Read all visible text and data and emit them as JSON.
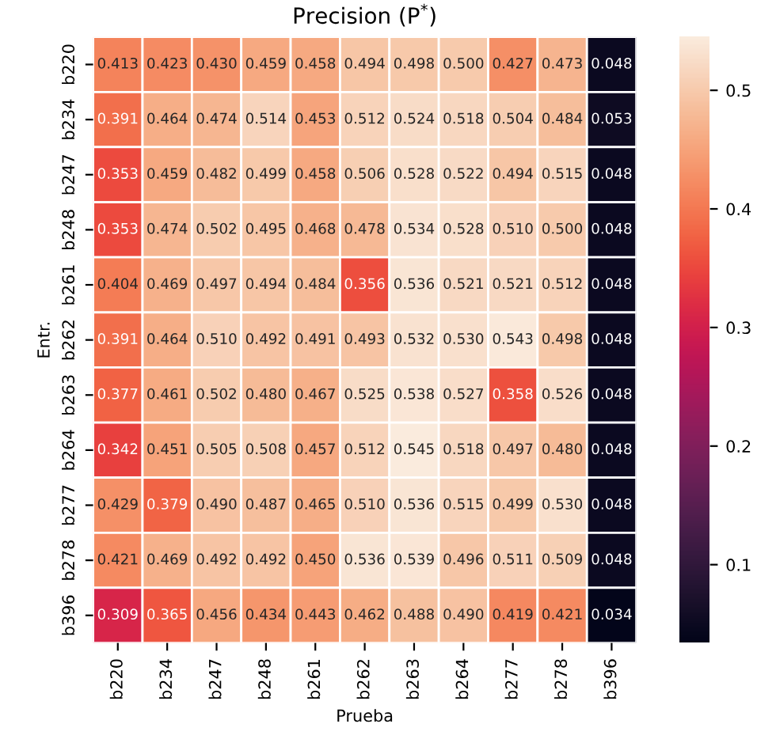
{
  "chart_data": {
    "type": "heatmap",
    "title": "Precision (P$^{*}$)",
    "xlabel": "Prueba",
    "ylabel": "Entr.",
    "categories": [
      "b220",
      "b234",
      "b247",
      "b248",
      "b261",
      "b262",
      "b263",
      "b264",
      "b277",
      "b278",
      "b396"
    ],
    "y_categories": [
      "b220",
      "b234",
      "b247",
      "b248",
      "b261",
      "b262",
      "b263",
      "b264",
      "b277",
      "b278",
      "b396"
    ],
    "cells": [
      [
        0.413,
        0.423,
        0.43,
        0.459,
        0.458,
        0.494,
        0.498,
        0.5,
        0.427,
        0.473,
        0.048
      ],
      [
        0.391,
        0.464,
        0.474,
        0.514,
        0.453,
        0.512,
        0.524,
        0.518,
        0.504,
        0.484,
        0.053
      ],
      [
        0.353,
        0.459,
        0.482,
        0.499,
        0.458,
        0.506,
        0.528,
        0.522,
        0.494,
        0.515,
        0.048
      ],
      [
        0.353,
        0.474,
        0.502,
        0.495,
        0.468,
        0.478,
        0.534,
        0.528,
        0.51,
        0.5,
        0.048
      ],
      [
        0.404,
        0.469,
        0.497,
        0.494,
        0.484,
        0.356,
        0.536,
        0.521,
        0.521,
        0.512,
        0.048
      ],
      [
        0.391,
        0.464,
        0.51,
        0.492,
        0.491,
        0.493,
        0.532,
        0.53,
        0.543,
        0.498,
        0.048
      ],
      [
        0.377,
        0.461,
        0.502,
        0.48,
        0.467,
        0.525,
        0.538,
        0.527,
        0.358,
        0.526,
        0.048
      ],
      [
        0.342,
        0.451,
        0.505,
        0.508,
        0.457,
        0.512,
        0.545,
        0.518,
        0.497,
        0.48,
        0.048
      ],
      [
        0.429,
        0.379,
        0.49,
        0.487,
        0.465,
        0.51,
        0.536,
        0.515,
        0.499,
        0.53,
        0.048
      ],
      [
        0.421,
        0.469,
        0.492,
        0.492,
        0.45,
        0.536,
        0.539,
        0.496,
        0.511,
        0.509,
        0.048
      ],
      [
        0.309,
        0.365,
        0.456,
        0.434,
        0.443,
        0.462,
        0.488,
        0.49,
        0.419,
        0.421,
        0.034
      ]
    ],
    "cell_labels": [
      [
        "0.413",
        "0.423",
        "0.430",
        "0.459",
        "0.458",
        "0.494",
        "0.498",
        "0.500",
        "0.427",
        "0.473",
        "0.048"
      ],
      [
        "0.391",
        "0.464",
        "0.474",
        "0.514",
        "0.453",
        "0.512",
        "0.524",
        "0.518",
        "0.504",
        "0.484",
        "0.053"
      ],
      [
        "0.353",
        "0.459",
        "0.482",
        "0.499",
        "0.458",
        "0.506",
        "0.528",
        "0.522",
        "0.494",
        "0.515",
        "0.048"
      ],
      [
        "0.353",
        "0.474",
        "0.502",
        "0.495",
        "0.468",
        "0.478",
        "0.534",
        "0.528",
        "0.510",
        "0.500",
        "0.048"
      ],
      [
        "0.404",
        "0.469",
        "0.497",
        "0.494",
        "0.484",
        "0.356",
        "0.536",
        "0.521",
        "0.521",
        "0.512",
        "0.048"
      ],
      [
        "0.391",
        "0.464",
        "0.510",
        "0.492",
        "0.491",
        "0.493",
        "0.532",
        "0.530",
        "0.543",
        "0.498",
        "0.048"
      ],
      [
        "0.377",
        "0.461",
        "0.502",
        "0.480",
        "0.467",
        "0.525",
        "0.538",
        "0.527",
        "0.358",
        "0.526",
        "0.048"
      ],
      [
        "0.342",
        "0.451",
        "0.505",
        "0.508",
        "0.457",
        "0.512",
        "0.545",
        "0.518",
        "0.497",
        "0.480",
        "0.048"
      ],
      [
        "0.429",
        "0.379",
        "0.490",
        "0.487",
        "0.465",
        "0.510",
        "0.536",
        "0.515",
        "0.499",
        "0.530",
        "0.048"
      ],
      [
        "0.421",
        "0.469",
        "0.492",
        "0.492",
        "0.450",
        "0.536",
        "0.539",
        "0.496",
        "0.511",
        "0.509",
        "0.048"
      ],
      [
        "0.309",
        "0.365",
        "0.456",
        "0.434",
        "0.443",
        "0.462",
        "0.488",
        "0.490",
        "0.419",
        "0.421",
        "0.034"
      ]
    ],
    "clim": [
      0.034,
      0.545
    ],
    "cticks": [
      0.1,
      0.2,
      0.3,
      0.4,
      0.5
    ]
  }
}
